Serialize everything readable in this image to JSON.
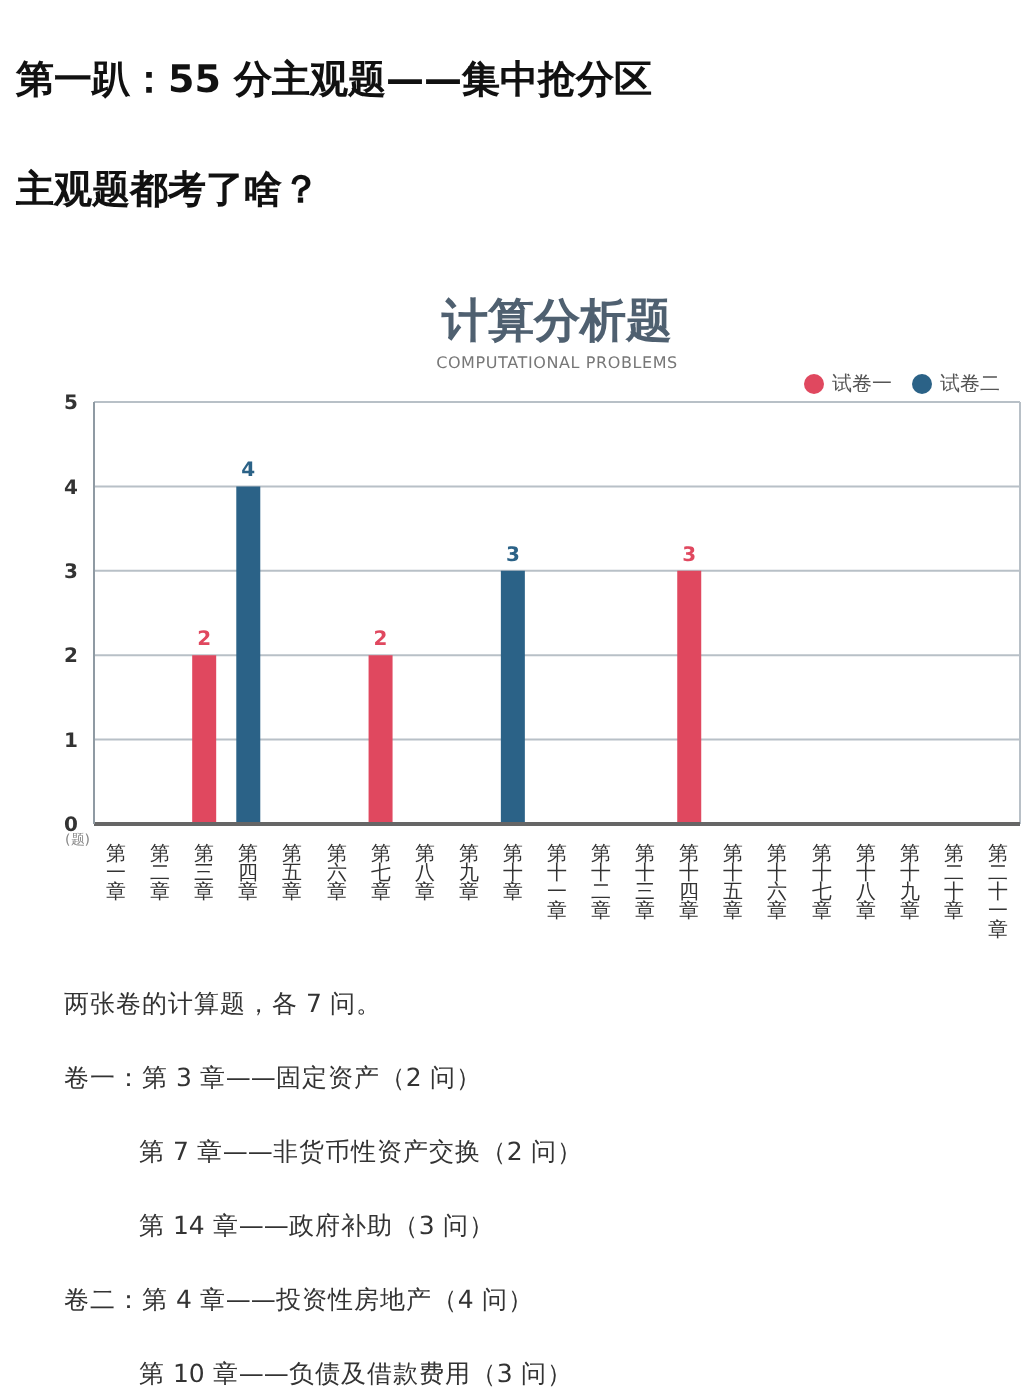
{
  "chart_data": {
    "type": "bar",
    "title": "计算分析题",
    "subtitle": "COMPUTATIONAL PROBLEMS",
    "ylabel": "(题)",
    "categories": [
      "第一章",
      "第二章",
      "第三章",
      "第四章",
      "第五章",
      "第六章",
      "第七章",
      "第八章",
      "第九章",
      "第十章",
      "第十一章",
      "第十二章",
      "第十三章",
      "第十四章",
      "第十五章",
      "第十六章",
      "第十七章",
      "第十八章",
      "第十九章",
      "第二十章",
      "第二十一章"
    ],
    "series": [
      {
        "name": "试卷一",
        "color": "#e0485f",
        "values": [
          null,
          null,
          2,
          null,
          null,
          null,
          2,
          null,
          null,
          null,
          null,
          null,
          null,
          3,
          null,
          null,
          null,
          null,
          null,
          null,
          null
        ]
      },
      {
        "name": "试卷二",
        "color": "#2b6287",
        "values": [
          null,
          null,
          null,
          4,
          null,
          null,
          null,
          null,
          null,
          3,
          null,
          null,
          null,
          null,
          null,
          null,
          null,
          null,
          null,
          null,
          null
        ]
      }
    ],
    "ylim": [
      0,
      5
    ],
    "yticks": [
      0,
      1,
      2,
      3,
      4,
      5
    ],
    "grid": "y",
    "legend": "top right",
    "data_labels": true,
    "annotations": [
      "第一趴：55 分主观题——集中抢分区",
      "主观题都考了啥？",
      "两张卷的计算题，各 7 问。",
      "卷一：第 3 章——固定资产（2 问）",
      "第 7 章——非货币性资产交换（2 问）",
      "第 14 章——政府补助（3 问）",
      "卷二：第 4 章——投资性房地产（4 问）",
      "第 10 章——负债及借款费用（3 问）"
    ]
  }
}
